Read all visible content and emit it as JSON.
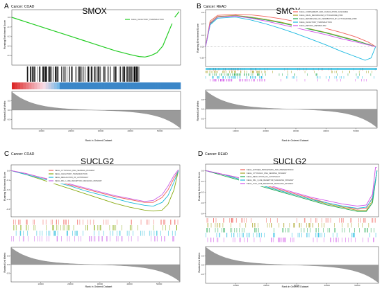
{
  "panels": [
    {
      "letter": "A",
      "cancer": "Cancer: COAD",
      "gene": "SMOX",
      "ylabel_top": "Running Enrichment Score",
      "ylabel_bottom": "Ranked List Metric",
      "xlabel": "Rank in Ordered Dataset",
      "legend": [
        {
          "name": "KEGG_OLFACTORY_TRANSDUCTION",
          "color": "#22cc22"
        }
      ]
    },
    {
      "letter": "B",
      "cancer": "Cancer: READ",
      "gene": "SMOX",
      "ylabel_top": "Running Enrichment Score",
      "ylabel_bottom": "Ranked List Metric",
      "xlabel": "Rank in Ordered Dataset",
      "legend": [
        {
          "name": "KEGG_COMPLEMENT_AND_COAGULATION_CASCADES",
          "color": "#f0605a"
        },
        {
          "name": "KEGG_DRUG_METABOLISM_CYTOCHROME_P450",
          "color": "#a8a020"
        },
        {
          "name": "KEGG_METABOLISM_OF_XENOBIOTICS_BY_CYTOCHROME_P450",
          "color": "#20a850"
        },
        {
          "name": "KEGG_OLFACTORY_TRANSDUCTION",
          "color": "#18b8e0"
        },
        {
          "name": "KEGG_RETINOL_METABOLISM",
          "color": "#d050e8"
        }
      ]
    },
    {
      "letter": "C",
      "cancer": "Cancer: COAD",
      "gene": "SUCLG2",
      "ylabel_top": "Running Enrichment Score",
      "ylabel_bottom": "Ranked List Metric",
      "xlabel": "Rank in Ordered Dataset",
      "legend": [
        {
          "name": "KEGG_CYTOSOLIC_DNA_SENSING_PATHWAY",
          "color": "#f0605a"
        },
        {
          "name": "KEGG_OLFACTORY_TRANSDUCTION",
          "color": "#88aa10"
        },
        {
          "name": "KEGG_REGULATION_OF_AUTOPHAGY",
          "color": "#18b8d8"
        },
        {
          "name": "KEGG_RIG_I_LIKE_RECEPTOR_SIGNALING_PATHWAY",
          "color": "#c860e8"
        }
      ]
    },
    {
      "letter": "D",
      "cancer": "Cancer: READ",
      "gene": "SUCLG2",
      "ylabel_top": "Running Enrichment Score",
      "ylabel_bottom": "Ranked List Metric",
      "xlabel": "Rank in Ordered Dataset",
      "legend": [
        {
          "name": "KEGG_ANTIGEN_PROCESSING_AND_PRESENTATION",
          "color": "#f0605a"
        },
        {
          "name": "KEGG_CYTOSOLIC_DNA_SENSING_PATHWAY",
          "color": "#a8a020"
        },
        {
          "name": "KEGG_REGULATION_OF_AUTOPHAGY",
          "color": "#20a850"
        },
        {
          "name": "KEGG_RIG_I_LIKE_RECEPTOR_SIGNALING_PATHWAY",
          "color": "#18b8e0"
        },
        {
          "name": "KEGG_TOLL_LIKE_RECEPTOR_SIGNALING_PATHWAY",
          "color": "#d050e8"
        }
      ]
    }
  ],
  "chart_data": [
    {
      "type": "line",
      "title": "SMOX",
      "subtitle": "Cancer: COAD",
      "xlabel": "Rank in Ordered Dataset",
      "ylabel": "Running Enrichment Score",
      "xlim": [
        0,
        57000
      ],
      "ylim": [
        -0.5,
        0.08
      ],
      "x_ticks": [
        10000,
        20000,
        30000,
        40000,
        50000
      ],
      "y_ticks": [
        0.0,
        -0.1,
        -0.2,
        -0.3,
        -0.4
      ],
      "y_tick_labels": [
        "0.0",
        "-0.1",
        "-0.2",
        "-0.3",
        "-0.4"
      ],
      "series": [
        {
          "name": "KEGG_OLFACTORY_TRANSDUCTION",
          "x": [
            0,
            5000,
            10000,
            15000,
            20000,
            25000,
            30000,
            35000,
            40000,
            43000,
            45000,
            47000,
            49000,
            51000,
            53000,
            55000,
            56500
          ],
          "y": [
            0.0,
            -0.05,
            -0.1,
            -0.15,
            -0.2,
            -0.25,
            -0.3,
            -0.35,
            -0.39,
            -0.41,
            -0.415,
            -0.4,
            -0.37,
            -0.3,
            -0.15,
            0.0,
            0.06
          ]
        }
      ],
      "hit_density": "dense black hits across ranks 5000-43000",
      "ranked_metric": {
        "ylim": [
          -1,
          1
        ],
        "y_ticks": [
          0.5,
          0.0,
          -0.5
        ],
        "y_tick_labels": [
          "0.5",
          "0.0",
          "-0.5"
        ]
      }
    },
    {
      "type": "line",
      "title": "SMOX",
      "subtitle": "Cancer: READ",
      "xlabel": "Rank in Ordered Dataset",
      "ylabel": "Running Enrichment Score",
      "xlim": [
        0,
        57000
      ],
      "ylim": [
        -0.35,
        0.65
      ],
      "x_ticks": [
        10000,
        20000,
        30000,
        40000,
        50000
      ],
      "y_ticks": [
        0.6,
        0.4,
        0.2,
        0.0,
        -0.2
      ],
      "y_tick_labels": [
        "0.6",
        "0.4",
        "0.2",
        "0.00",
        "-0.20"
      ],
      "series": [
        {
          "name": "KEGG_COMPLEMENT_AND_COAGULATION_CASCADES",
          "x": [
            0,
            1500,
            4000,
            10000,
            15000,
            20000,
            25000,
            30000,
            35000,
            40000,
            45000,
            50000,
            54000,
            56500
          ],
          "y": [
            0.0,
            0.45,
            0.55,
            0.57,
            0.56,
            0.53,
            0.49,
            0.44,
            0.38,
            0.32,
            0.25,
            0.17,
            0.08,
            0.0
          ]
        },
        {
          "name": "KEGG_DRUG_METABOLISM_CYTOCHROME_P450",
          "x": [
            0,
            1500,
            4000,
            10000,
            15000,
            20000,
            25000,
            30000,
            35000,
            40000,
            45000,
            50000,
            54000,
            56500
          ],
          "y": [
            0.0,
            0.42,
            0.53,
            0.55,
            0.52,
            0.48,
            0.43,
            0.37,
            0.31,
            0.25,
            0.18,
            0.11,
            0.04,
            0.0
          ]
        },
        {
          "name": "KEGG_METABOLISM_OF_XENOBIOTICS_BY_CYTOCHROME_P450",
          "x": [
            0,
            1500,
            4000,
            10000,
            15000,
            20000,
            25000,
            30000,
            35000,
            40000,
            45000,
            50000,
            54000,
            56500
          ],
          "y": [
            0.0,
            0.4,
            0.52,
            0.54,
            0.51,
            0.47,
            0.42,
            0.36,
            0.3,
            0.24,
            0.17,
            0.1,
            0.04,
            0.0
          ]
        },
        {
          "name": "KEGG_OLFACTORY_TRANSDUCTION",
          "x": [
            0,
            1500,
            4000,
            10000,
            15000,
            20000,
            25000,
            30000,
            35000,
            40000,
            45000,
            50000,
            53000,
            55000,
            56500
          ],
          "y": [
            0.0,
            0.38,
            0.5,
            0.52,
            0.47,
            0.4,
            0.32,
            0.23,
            0.13,
            0.03,
            -0.08,
            -0.18,
            -0.24,
            -0.2,
            0.0
          ]
        },
        {
          "name": "KEGG_RETINOL_METABOLISM",
          "x": [
            0,
            1500,
            4000,
            10000,
            15000,
            20000,
            25000,
            30000,
            35000,
            40000,
            45000,
            50000,
            54000,
            56500
          ],
          "y": [
            0.0,
            0.41,
            0.52,
            0.54,
            0.5,
            0.45,
            0.39,
            0.33,
            0.27,
            0.21,
            0.14,
            0.08,
            0.03,
            0.0
          ]
        }
      ],
      "ranked_metric": {
        "ylim": [
          -1,
          1
        ],
        "y_ticks": [
          0.5,
          0.0,
          -0.5
        ],
        "y_tick_labels": [
          "0.5",
          "0.0",
          "-0.5"
        ]
      }
    },
    {
      "type": "line",
      "title": "SUCLG2",
      "subtitle": "Cancer: COAD",
      "xlabel": "Rank in Ordered Dataset",
      "ylabel": "Running Enrichment Score",
      "xlim": [
        0,
        57000
      ],
      "ylim": [
        -0.48,
        0.06
      ],
      "x_ticks": [
        10000,
        20000,
        30000,
        40000,
        50000
      ],
      "y_ticks": [
        0.0,
        -0.1,
        -0.2,
        -0.3,
        -0.4
      ],
      "y_tick_labels": [
        "0.0",
        "-0.1",
        "-0.2",
        "-0.3",
        "-0.4"
      ],
      "series": [
        {
          "name": "KEGG_CYTOSOLIC_DNA_SENSING_PATHWAY",
          "x": [
            0,
            5000,
            10000,
            15000,
            20000,
            25000,
            30000,
            35000,
            40000,
            45000,
            48000,
            51000,
            53000,
            55000,
            56500
          ],
          "y": [
            0.0,
            -0.03,
            -0.07,
            -0.11,
            -0.15,
            -0.19,
            -0.23,
            -0.27,
            -0.3,
            -0.33,
            -0.33,
            -0.28,
            -0.2,
            -0.08,
            0.0
          ]
        },
        {
          "name": "KEGG_OLFACTORY_TRANSDUCTION",
          "x": [
            0,
            5000,
            10000,
            15000,
            20000,
            25000,
            30000,
            35000,
            40000,
            45000,
            48000,
            51000,
            53000,
            55000,
            56500
          ],
          "y": [
            0.0,
            -0.04,
            -0.09,
            -0.14,
            -0.19,
            -0.24,
            -0.29,
            -0.34,
            -0.38,
            -0.41,
            -0.42,
            -0.41,
            -0.35,
            -0.2,
            0.0
          ]
        },
        {
          "name": "KEGG_REGULATION_OF_AUTOPHAGY",
          "x": [
            0,
            5000,
            10000,
            15000,
            20000,
            25000,
            30000,
            35000,
            40000,
            45000,
            48000,
            51000,
            53000,
            55000,
            56500
          ],
          "y": [
            0.0,
            -0.04,
            -0.08,
            -0.12,
            -0.16,
            -0.21,
            -0.25,
            -0.29,
            -0.33,
            -0.36,
            -0.37,
            -0.33,
            -0.26,
            -0.12,
            0.0
          ]
        },
        {
          "name": "KEGG_RIG_I_LIKE_RECEPTOR_SIGNALING_PATHWAY",
          "x": [
            0,
            5000,
            10000,
            15000,
            20000,
            25000,
            30000,
            35000,
            40000,
            45000,
            48000,
            51000,
            53000,
            55000,
            56500
          ],
          "y": [
            0.0,
            -0.03,
            -0.07,
            -0.1,
            -0.14,
            -0.18,
            -0.22,
            -0.26,
            -0.29,
            -0.32,
            -0.31,
            -0.25,
            -0.16,
            -0.05,
            0.01
          ]
        }
      ],
      "ranked_metric": {
        "ylim": [
          -1,
          1
        ],
        "y_ticks": [
          0.5,
          0.0,
          -0.5
        ],
        "y_tick_labels": [
          "0.5",
          "0.0",
          "-0.5"
        ]
      }
    },
    {
      "type": "line",
      "title": "SUCLG2",
      "subtitle": "Cancer: READ",
      "xlabel": "Rank in Ordered Dataset",
      "ylabel": "Running Enrichment Score",
      "xlim": [
        0,
        57000
      ],
      "ylim": [
        -0.43,
        0.06
      ],
      "x_ticks": [
        10000,
        20000,
        30000,
        40000,
        50000
      ],
      "y_ticks": [
        0.0,
        -0.1,
        -0.2,
        -0.3,
        -0.4
      ],
      "y_tick_labels": [
        "0.0",
        "-0.1",
        "-0.2",
        "-0.3",
        "-0.4"
      ],
      "series": [
        {
          "name": "KEGG_ANTIGEN_PROCESSING_AND_PRESENTATION",
          "x": [
            0,
            5000,
            10000,
            15000,
            20000,
            25000,
            30000,
            35000,
            40000,
            45000,
            50000,
            53000,
            55000,
            56500
          ],
          "y": [
            0.0,
            -0.03,
            -0.06,
            -0.1,
            -0.14,
            -0.18,
            -0.22,
            -0.26,
            -0.3,
            -0.33,
            -0.36,
            -0.35,
            -0.25,
            0.0
          ]
        },
        {
          "name": "KEGG_CYTOSOLIC_DNA_SENSING_PATHWAY",
          "x": [
            0,
            5000,
            10000,
            15000,
            20000,
            25000,
            30000,
            35000,
            40000,
            45000,
            50000,
            53000,
            55000,
            56500
          ],
          "y": [
            0.0,
            -0.03,
            -0.07,
            -0.11,
            -0.15,
            -0.19,
            -0.23,
            -0.27,
            -0.31,
            -0.34,
            -0.37,
            -0.37,
            -0.28,
            0.0
          ]
        },
        {
          "name": "KEGG_REGULATION_OF_AUTOPHAGY",
          "x": [
            0,
            5000,
            10000,
            15000,
            20000,
            25000,
            30000,
            35000,
            40000,
            45000,
            50000,
            53000,
            55000,
            56500
          ],
          "y": [
            0.0,
            -0.04,
            -0.08,
            -0.12,
            -0.16,
            -0.2,
            -0.24,
            -0.28,
            -0.32,
            -0.35,
            -0.38,
            -0.38,
            -0.3,
            0.0
          ]
        },
        {
          "name": "KEGG_RIG_I_LIKE_RECEPTOR_SIGNALING_PATHWAY",
          "x": [
            0,
            5000,
            10000,
            15000,
            20000,
            25000,
            30000,
            35000,
            40000,
            45000,
            50000,
            53000,
            55000,
            56500
          ],
          "y": [
            0.0,
            -0.03,
            -0.07,
            -0.11,
            -0.15,
            -0.19,
            -0.23,
            -0.27,
            -0.3,
            -0.33,
            -0.35,
            -0.34,
            -0.26,
            0.0
          ]
        },
        {
          "name": "KEGG_TOLL_LIKE_RECEPTOR_SIGNALING_PATHWAY",
          "x": [
            0,
            5000,
            10000,
            15000,
            20000,
            25000,
            30000,
            35000,
            40000,
            45000,
            50000,
            53000,
            55000,
            56000,
            56500
          ],
          "y": [
            0.0,
            -0.03,
            -0.06,
            -0.1,
            -0.13,
            -0.17,
            -0.21,
            -0.25,
            -0.28,
            -0.31,
            -0.33,
            -0.32,
            -0.22,
            0.03,
            0.03
          ]
        }
      ],
      "ranked_metric": {
        "ylim": [
          -1,
          1
        ],
        "y_ticks": [
          0.5,
          0.0,
          -0.5
        ],
        "y_tick_labels": [
          "0.5",
          "0.0",
          "-0.5"
        ]
      }
    }
  ]
}
